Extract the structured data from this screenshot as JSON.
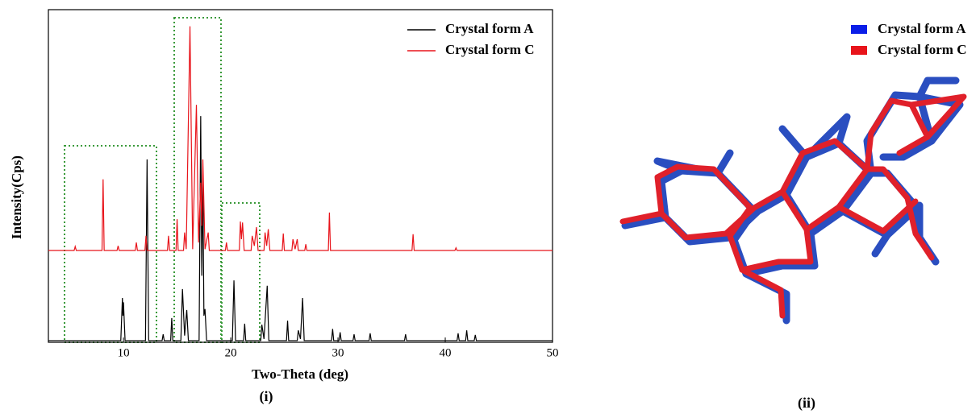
{
  "chart_data": {
    "type": "line",
    "xlabel": "Two-Theta (deg)",
    "ylabel": "Intensity(Cps)",
    "xlim": [
      3,
      50
    ],
    "xticks": [
      10,
      20,
      30,
      40,
      50
    ],
    "ylim": [
      0,
      100
    ],
    "legend": "upper right",
    "series": [
      {
        "name": "Crystal form A",
        "color": "#000000",
        "x": [
          3,
          9.75,
          9.9,
          9.95,
          10.0,
          10.15,
          12.05,
          12.2,
          12.35,
          13.6,
          13.7,
          13.8,
          14.4,
          14.5,
          14.6,
          15.35,
          15.5,
          15.7,
          15.9,
          16.05,
          17.05,
          17.2,
          17.3,
          17.4,
          17.5,
          17.6,
          17.75,
          20.15,
          20.3,
          20.45,
          21.2,
          21.3,
          21.4,
          22.8,
          22.9,
          23.1,
          23.4,
          23.55,
          25.2,
          25.3,
          25.4,
          26.2,
          26.3,
          26.5,
          26.7,
          26.85,
          29.4,
          29.5,
          29.6,
          30.1,
          30.2,
          30.3,
          31.4,
          31.5,
          31.6,
          32.9,
          33,
          33.1,
          36.2,
          36.3,
          36.4,
          41.1,
          41.2,
          41.3,
          41.9,
          42,
          42.1,
          42.7,
          42.8,
          42.9,
          50
        ],
        "values": [
          0.5,
          0.5,
          13.3,
          8,
          12,
          0.5,
          0.5,
          55,
          0.5,
          0.5,
          2.4,
          0.5,
          0.5,
          7.3,
          0.5,
          0.5,
          16,
          2,
          9.7,
          0.5,
          0.5,
          68,
          20,
          49,
          8,
          10,
          0.5,
          0.5,
          18.6,
          0.5,
          0.5,
          5.6,
          0.5,
          0.5,
          5.3,
          1,
          17,
          0.5,
          0.5,
          6.5,
          0.5,
          0.5,
          3.6,
          1,
          13.3,
          0.5,
          0.5,
          4,
          0.5,
          0.5,
          3,
          0.5,
          0.5,
          2.4,
          0.5,
          0.5,
          2.7,
          0.5,
          0.5,
          2.4,
          0.5,
          0.5,
          2.7,
          0.5,
          0.5,
          3.6,
          0.5,
          0.5,
          2.2,
          0.5,
          0.5
        ]
      },
      {
        "name": "Crystal form C",
        "color": "#e8141b",
        "x": [
          3,
          5.4,
          5.5,
          5.6,
          8.0,
          8.1,
          8.2,
          9.4,
          9.5,
          9.6,
          11.1,
          11.2,
          11.3,
          12.0,
          12.1,
          12.2,
          14.1,
          14.2,
          14.3,
          14.9,
          15.0,
          15.1,
          15.6,
          15.7,
          15.85,
          16.2,
          16.45,
          16.8,
          17.0,
          17.2,
          17.3,
          17.4,
          17.6,
          17.9,
          18.0,
          19.5,
          19.6,
          19.7,
          20.8,
          20.9,
          21.0,
          21.1,
          21.25,
          21.9,
          22.0,
          22.2,
          22.4,
          22.55,
          23.1,
          23.2,
          23.35,
          23.5,
          23.65,
          24.8,
          24.9,
          25.0,
          25.7,
          25.8,
          26.0,
          26.2,
          26.3,
          26.9,
          27,
          27.1,
          29.1,
          29.2,
          29.3,
          36.9,
          37,
          37.1,
          40.9,
          41,
          41.1,
          50
        ],
        "values": [
          27.6,
          27.6,
          28.8,
          27.6,
          27.6,
          49,
          27.6,
          27.6,
          29,
          27.6,
          27.6,
          30,
          27.6,
          27.6,
          32,
          27.6,
          27.6,
          32,
          27.6,
          27.6,
          37,
          27.6,
          27.6,
          33,
          28,
          95,
          28,
          71.4,
          30,
          48,
          35,
          55,
          28,
          33,
          27.6,
          27.6,
          30,
          27.6,
          27.6,
          36.3,
          31,
          36,
          27.6,
          27.6,
          32,
          29,
          34.6,
          27.6,
          27.6,
          33,
          29,
          34,
          27.6,
          27.6,
          32.7,
          27.6,
          27.6,
          31,
          28,
          31,
          27.6,
          27.6,
          29.5,
          27.6,
          27.6,
          39,
          27.6,
          27.6,
          32.5,
          27.6,
          27.6,
          28.4,
          27.6,
          27.6
        ]
      }
    ]
  },
  "panel_labels": [
    "(i)",
    "(ii)"
  ],
  "structure_legend": [
    "Crystal form A",
    "Crystal form C"
  ]
}
